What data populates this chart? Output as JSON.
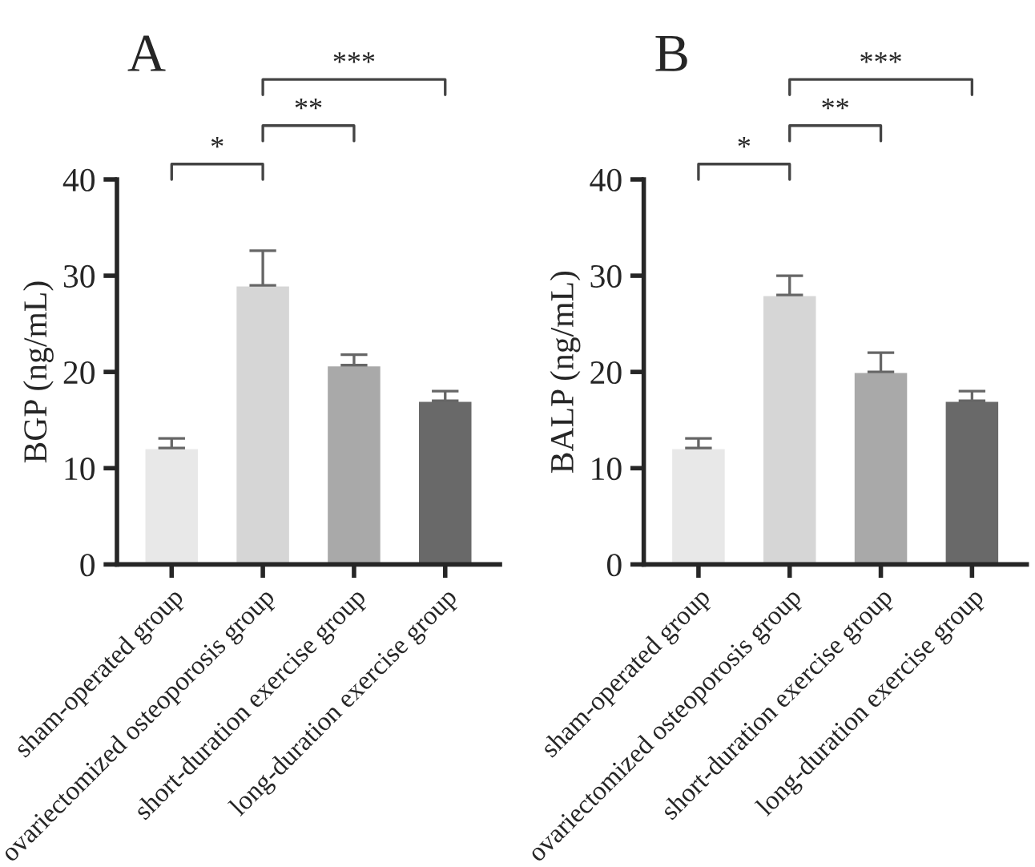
{
  "chart_data": [
    {
      "type": "bar",
      "title": "A",
      "ylabel": "BGP (ng/mL)",
      "categories": [
        "sham-operated group",
        "ovariectomized osteoporosis group",
        "short-duration exercise group",
        "long-duration exercise group"
      ],
      "values": [
        12.1,
        29,
        20.7,
        17
      ],
      "colors": [
        "#e8e8e8",
        "#d6d6d6",
        "#a9a9a9",
        "#696969"
      ],
      "errors": [
        [
          12.1,
          13.1
        ],
        [
          29,
          32.6
        ],
        [
          20.7,
          21.8
        ],
        [
          17,
          18
        ]
      ],
      "ylim": [
        0,
        40
      ],
      "yticks": [
        0,
        10,
        20,
        30,
        40
      ],
      "grid": false,
      "annotations": [
        "*",
        "**",
        "***"
      ]
    },
    {
      "type": "bar",
      "title": "B",
      "ylabel": "BALP (ng/mL)",
      "categories": [
        "sham-operated group",
        "ovariectomized osteoporosis group",
        "short-duration exercise group",
        "long-duration exercise group"
      ],
      "values": [
        12.1,
        28,
        20,
        17
      ],
      "colors": [
        "#e8e8e8",
        "#d6d6d6",
        "#a9a9a9",
        "#696969"
      ],
      "errors": [
        [
          12.1,
          13.1
        ],
        [
          28,
          30
        ],
        [
          20,
          22
        ],
        [
          17,
          18
        ]
      ],
      "ylim": [
        0,
        40
      ],
      "yticks": [
        0,
        10,
        20,
        30,
        40
      ],
      "grid": false,
      "annotations": [
        "*",
        "**",
        "***"
      ]
    }
  ]
}
